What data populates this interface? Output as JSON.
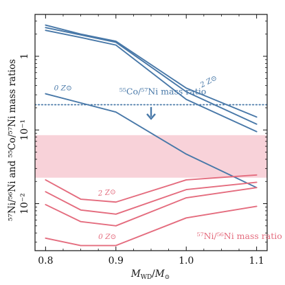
{
  "chart_data": {
    "type": "line",
    "title": "",
    "xlabel": "M_WD / M_⊙",
    "ylabel": "⁵⁷Ni/⁵⁶Ni and ⁵⁵Co/⁵⁷Ni mass ratios",
    "xscale": "linear",
    "yscale": "log",
    "xlim": [
      0.785,
      1.115
    ],
    "ylim": [
      0.0023,
      3.7
    ],
    "xticks": [
      0.8,
      0.9,
      1.0,
      1.1
    ],
    "xtick_labels": [
      "0.8",
      "0.9",
      "1.0",
      "1.1"
    ],
    "yticks": [
      0.01,
      0.1,
      1
    ],
    "ytick_labels": [
      "10⁻²",
      "10⁻¹",
      "1"
    ],
    "grid": false,
    "legend": "none",
    "colors": {
      "co": "#4878a8",
      "ni": "#e46c7e",
      "band": "#f8d2d9"
    },
    "band": {
      "ymin": 0.0225,
      "ymax": 0.085
    },
    "reference_line": {
      "y": 0.22,
      "style": "dotted",
      "color": "#4878a8"
    },
    "arrow": {
      "x": 0.95,
      "y_from": 0.205,
      "y_to": 0.145
    },
    "co_series": [
      {
        "x": [
          0.8,
          0.85,
          0.9,
          1.0,
          1.1
        ],
        "values": [
          2.65,
          2.0,
          1.6,
          0.37,
          0.15
        ]
      },
      {
        "x": [
          0.8,
          0.85,
          0.9,
          1.0,
          1.1
        ],
        "values": [
          2.45,
          1.95,
          1.55,
          0.33,
          0.12
        ]
      },
      {
        "x": [
          0.8,
          0.85,
          0.9,
          1.0,
          1.1
        ],
        "values": [
          2.25,
          1.8,
          1.42,
          0.26,
          0.095
        ]
      },
      {
        "x": [
          0.8,
          0.9,
          1.0,
          1.1
        ],
        "values": [
          0.31,
          0.175,
          0.047,
          0.0165
        ]
      }
    ],
    "ni_series": [
      {
        "x": [
          0.8,
          0.85,
          0.9,
          1.0,
          1.1
        ],
        "values": [
          0.021,
          0.0115,
          0.0105,
          0.021,
          0.0245
        ]
      },
      {
        "x": [
          0.8,
          0.85,
          0.9,
          1.0,
          1.1
        ],
        "values": [
          0.0145,
          0.0082,
          0.0072,
          0.0155,
          0.0195
        ]
      },
      {
        "x": [
          0.8,
          0.85,
          0.9,
          1.0,
          1.1
        ],
        "values": [
          0.0097,
          0.0057,
          0.005,
          0.012,
          0.0165
        ]
      },
      {
        "x": [
          0.8,
          0.85,
          0.9,
          1.0,
          1.1
        ],
        "values": [
          0.0034,
          0.0027,
          0.0027,
          0.0064,
          0.0092
        ]
      }
    ],
    "annotations": [
      {
        "id": "co_label",
        "text": "⁵⁵Co/⁵⁷Ni mass ratio",
        "x": 0.905,
        "y": 0.305,
        "color": "co"
      },
      {
        "id": "co_0z",
        "text": "0 Z⊙",
        "x": 0.812,
        "y": 0.345,
        "color": "co"
      },
      {
        "id": "co_2z",
        "text": "2 Z⊙",
        "x": 1.022,
        "y": 0.375,
        "color": "co"
      },
      {
        "id": "ni_label",
        "text": "⁵⁷Ni/⁵⁶Ni mass ratio",
        "x": 1.015,
        "y": 0.0033,
        "color": "ni"
      },
      {
        "id": "ni_2z",
        "text": "2 Z⊙",
        "x": 0.875,
        "y": 0.0128,
        "color": "ni"
      },
      {
        "id": "ni_0z",
        "text": "0 Z⊙",
        "x": 0.875,
        "y": 0.0033,
        "color": "ni"
      }
    ]
  }
}
